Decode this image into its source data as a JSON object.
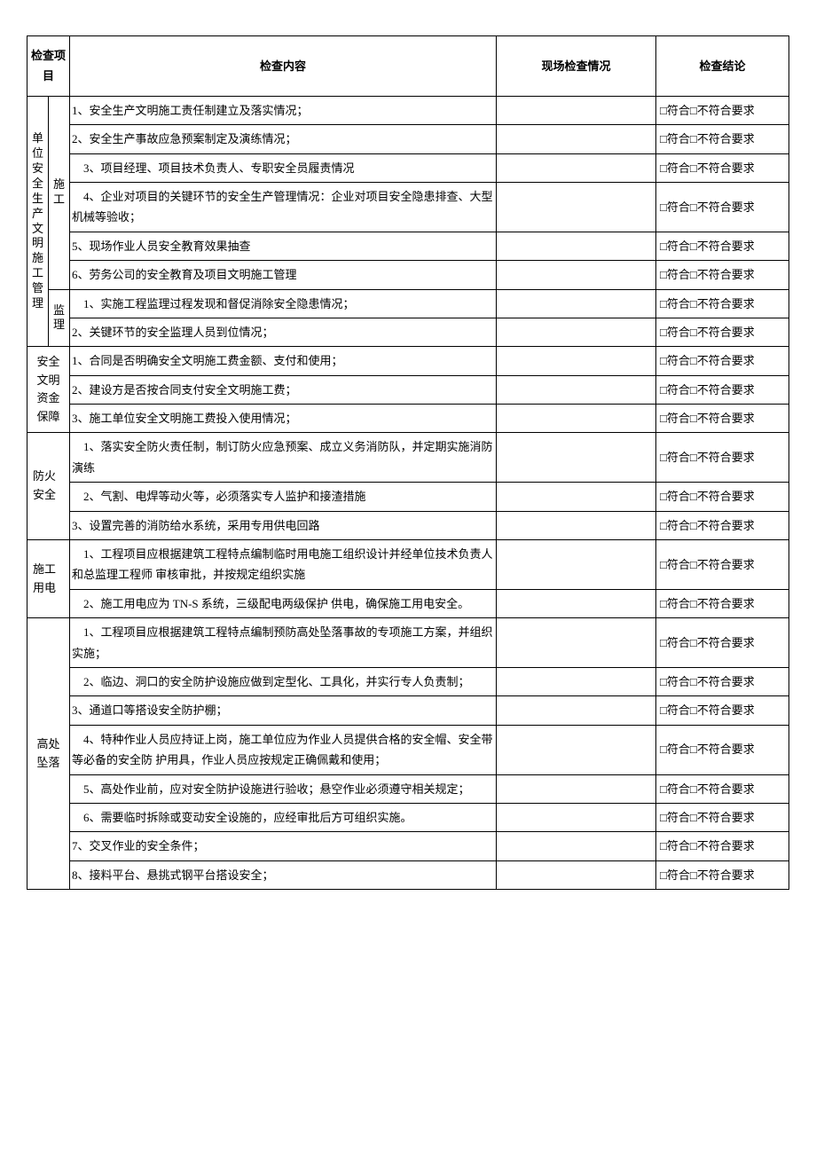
{
  "headers": {
    "col1": "检查项目",
    "col2": "检查内容",
    "col3": "现场检查情况",
    "col4": "检查结论"
  },
  "conclusion_text": "□符合□不符合要求",
  "sections": {
    "s1": {
      "cat1": "单位安全生产文明施工管理",
      "sub1": "施工",
      "sub2": "监 理",
      "items1": [
        "1、安全生产文明施工责任制建立及落实情况；",
        "2、安全生产事故应急预案制定及演练情况；",
        "　3、项目经理、项目技术负责人、专职安全员履责情况",
        "　4、企业对项目的关键环节的安全生产管理情况：企业对项目安全隐患排查、大型机械等验收；",
        "5、现场作业人员安全教育效果抽查",
        "6、劳务公司的安全教育及项目文明施工管理"
      ],
      "items2": [
        "　1、实施工程监理过程发现和督促消除安全隐患情况；",
        "2、关键环节的安全监理人员到位情况；"
      ]
    },
    "s2": {
      "cat": "安全文明资金保障",
      "items": [
        "1、合同是否明确安全文明施工费金额、支付和使用；",
        "2、建设方是否按合同支付安全文明施工费；",
        "3、施工单位安全文明施工费投入使用情况；"
      ]
    },
    "s3": {
      "cat": "防火安全",
      "items": [
        "　1、落实安全防火责任制，制订防火应急预案、成立义务消防队，并定期实施消防演练",
        "　2、气割、电焊等动火等，必须落实专人监护和接渣措施",
        "3、设置完善的消防给水系统，采用专用供电回路"
      ]
    },
    "s4": {
      "cat": "施工用电",
      "items": [
        "　1、工程项目应根据建筑工程特点编制临时用电施工组织设计并经单位技术负责人和总监理工程师 审核审批，并按规定组织实施",
        "　2、施工用电应为 TN-S 系统，三级配电两级保护 供电，确保施工用电安全。"
      ]
    },
    "s5": {
      "cat": "高处坠落",
      "items": [
        "　1、工程项目应根据建筑工程特点编制预防高处坠落事故的专项施工方案，并组织实施；",
        "　2、临边、洞口的安全防护设施应做到定型化、工具化，并实行专人负责制；",
        "3、通道口等搭设安全防护棚；",
        "　4、特种作业人员应持证上岗，施工单位应为作业人员提供合格的安全帽、安全带等必备的安全防 护用具，作业人员应按规定正确佩戴和使用；",
        "　5、高处作业前，应对安全防护设施进行验收；悬空作业必须遵守相关规定；",
        "　6、需要临时拆除或变动安全设施的，应经审批后方可组织实施。",
        "7、交叉作业的安全条件；",
        "8、接料平台、悬挑式钢平台搭设安全；"
      ]
    }
  }
}
